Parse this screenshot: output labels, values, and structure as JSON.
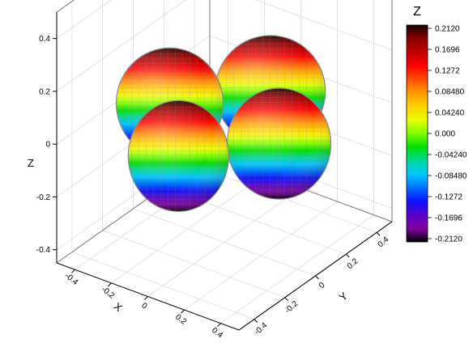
{
  "chart_data": {
    "type": "surface-3d",
    "title": "",
    "xlabel": "X",
    "ylabel": "Y",
    "zlabel": "Z",
    "x_ticks": [
      "-0.4",
      "-0.2",
      "0",
      "0.2",
      "0.4"
    ],
    "y_ticks": [
      "-0.4",
      "-0.2",
      "0",
      "0.2",
      "0.4"
    ],
    "z_ticks": [
      "-0.4",
      "-0.2",
      "0",
      "0.2",
      "0.4"
    ],
    "xlim": [
      -0.5,
      0.5
    ],
    "ylim": [
      -0.5,
      0.5
    ],
    "zlim": [
      -0.45,
      0.5
    ],
    "grid": true,
    "surface": {
      "shape": "four-lobed (d-orbital-like) surface",
      "lobes": 4,
      "lobe_extent": 0.3,
      "lobe_half_height": 0.21
    },
    "colorbar": {
      "title": "Z",
      "min": -0.212,
      "max": 0.212,
      "labels": [
        "0.2120",
        "0.1696",
        "0.1272",
        "0.08480",
        "0.04240",
        "0.000",
        "-0.04240",
        "-0.08480",
        "-0.1272",
        "-0.1696",
        "-0.2120"
      ],
      "colors": [
        "#1a0000",
        "#8b0000",
        "#c40000",
        "#ff0000",
        "#ff5000",
        "#ff9a00",
        "#ffd200",
        "#e6ff00",
        "#7cff00",
        "#00e000",
        "#00d8a0",
        "#00c8ff",
        "#0070ff",
        "#1010ff",
        "#5a00c8",
        "#8000a0",
        "#000000"
      ]
    }
  }
}
